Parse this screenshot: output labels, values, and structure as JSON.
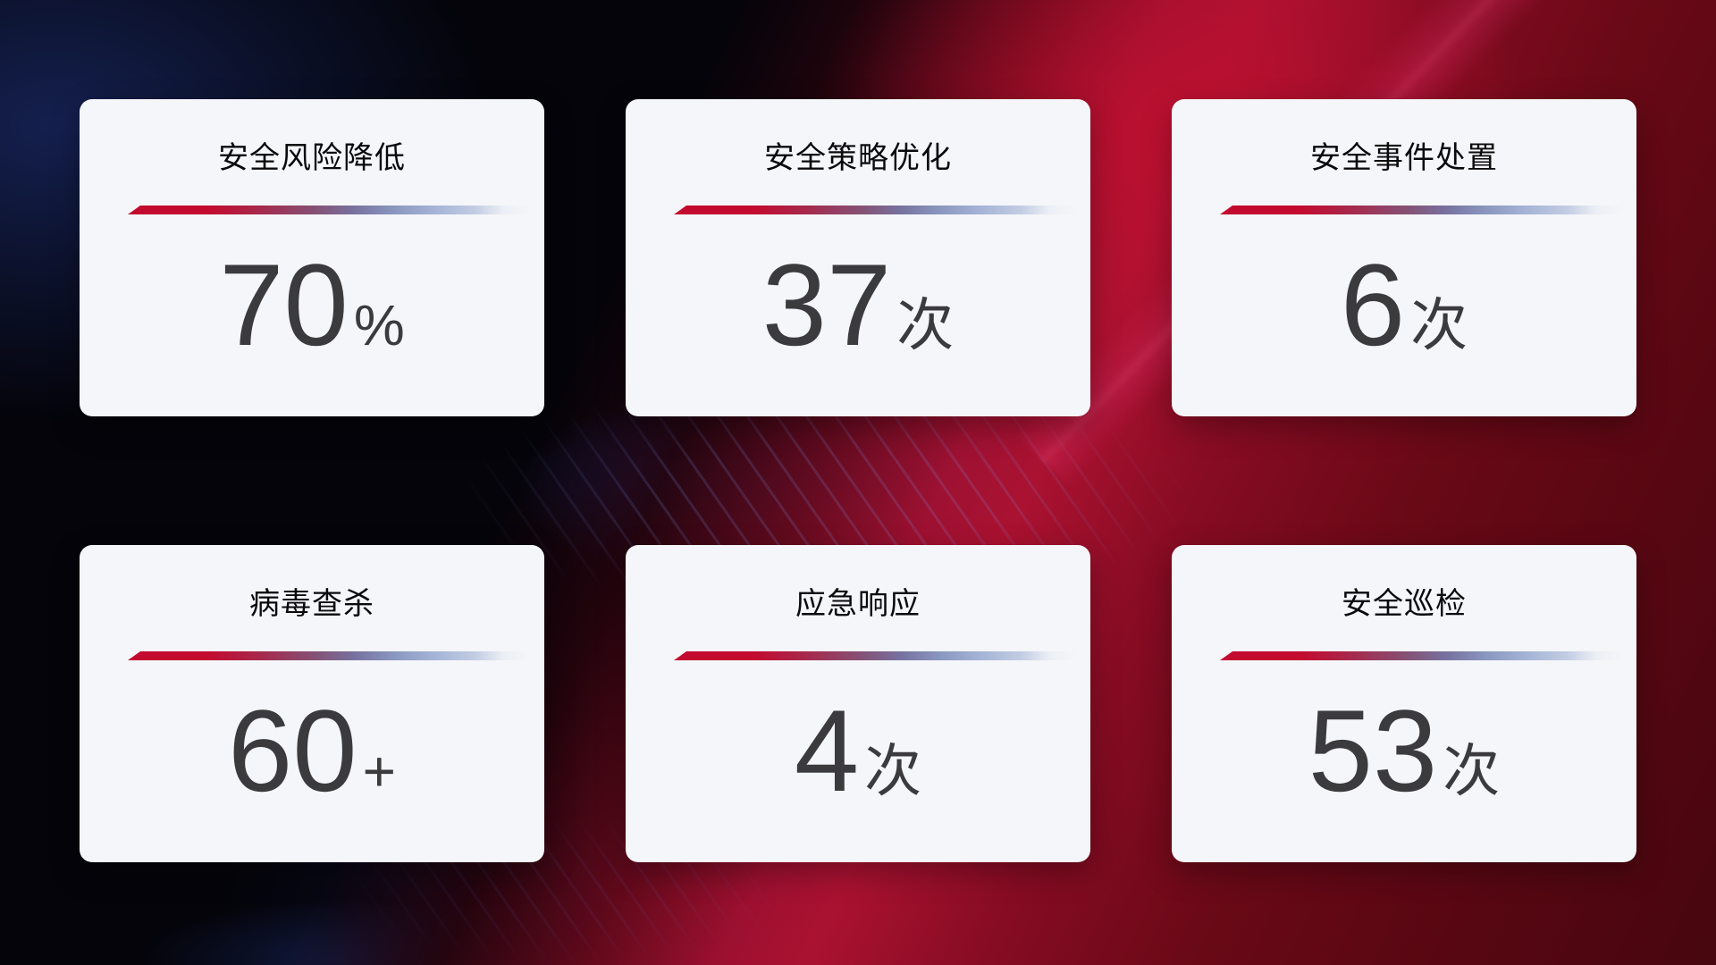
{
  "page": {
    "description_label": "安全运营数据统计卡片",
    "colors": {
      "background_base": "#04040a",
      "background_red": "#a31030",
      "background_navy": "#152152",
      "background_blue_beam": "#1e379e",
      "card_background": "#f5f6f9",
      "title_color": "#0a0a0c",
      "value_color": "#3b3b3e",
      "divider_red": "#c30b2f",
      "divider_blue": "#a5b4d6"
    }
  },
  "cards": [
    {
      "title": "安全风险降低",
      "value": "70",
      "suffix": "%"
    },
    {
      "title": "安全策略优化",
      "value": "37",
      "suffix": "次"
    },
    {
      "title": "安全事件处置",
      "value": "6",
      "suffix": "次"
    },
    {
      "title": "病毒查杀",
      "value": "60",
      "suffix": "+"
    },
    {
      "title": "应急响应",
      "value": "4",
      "suffix": "次"
    },
    {
      "title": "安全巡检",
      "value": "53",
      "suffix": "次"
    }
  ]
}
